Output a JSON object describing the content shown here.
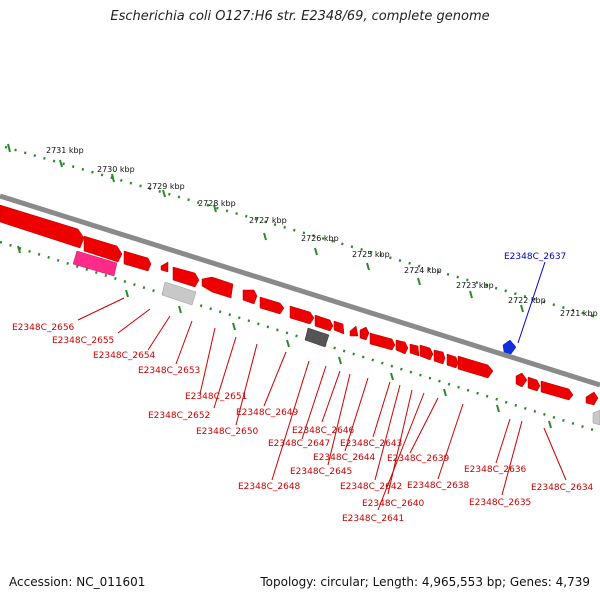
{
  "title": "Escherichia coli O127:H6 str. E2348/69, complete genome",
  "footer": {
    "accession": "Accession: NC_011601",
    "summary": "Topology: circular; Length: 4,965,553 bp; Genes: 4,739"
  },
  "scale_labels": [
    "2731 kbp",
    "2730 kbp",
    "2729 kbp",
    "2728 kbp",
    "2727 kbp",
    "2726 kbp",
    "2725 kbp",
    "2724 kbp",
    "2723 kbp",
    "2722 kbp",
    "2721 kbp"
  ],
  "gene_labels": [
    {
      "text": "E2348C_2637",
      "color": "#0000cc"
    },
    {
      "text": "E2348C_2656",
      "color": "#cc0000"
    },
    {
      "text": "E2348C_2655",
      "color": "#cc0000"
    },
    {
      "text": "E2348C_2654",
      "color": "#cc0000"
    },
    {
      "text": "E2348C_2653",
      "color": "#cc0000"
    },
    {
      "text": "E2348C_2651",
      "color": "#cc0000"
    },
    {
      "text": "E2348C_2652",
      "color": "#cc0000"
    },
    {
      "text": "E2348C_2649",
      "color": "#cc0000"
    },
    {
      "text": "E2348C_2650",
      "color": "#cc0000"
    },
    {
      "text": "E2348C_2646",
      "color": "#cc0000"
    },
    {
      "text": "E2348C_2647",
      "color": "#cc0000"
    },
    {
      "text": "E2348C_2643",
      "color": "#cc0000"
    },
    {
      "text": "E2348C_2644",
      "color": "#cc0000"
    },
    {
      "text": "E2348C_2645",
      "color": "#cc0000"
    },
    {
      "text": "E2348C_2639",
      "color": "#cc0000"
    },
    {
      "text": "E2348C_2648",
      "color": "#cc0000"
    },
    {
      "text": "E2348C_2642",
      "color": "#cc0000"
    },
    {
      "text": "E2348C_2638",
      "color": "#cc0000"
    },
    {
      "text": "E2348C_2640",
      "color": "#cc0000"
    },
    {
      "text": "E2348C_2641",
      "color": "#cc0000"
    },
    {
      "text": "E2348C_2636",
      "color": "#cc0000"
    },
    {
      "text": "E2348C_2635",
      "color": "#cc0000"
    },
    {
      "text": "E2348C_2634",
      "color": "#cc0000"
    }
  ],
  "colors": {
    "backbone": "#8a8a8a",
    "gene": "#ee0000",
    "rna": "#ff2a8a",
    "pseudo": "#bdbdbd",
    "other": "#555555",
    "highlight": "#1030e0",
    "ticks": "#2a8a2a"
  }
}
